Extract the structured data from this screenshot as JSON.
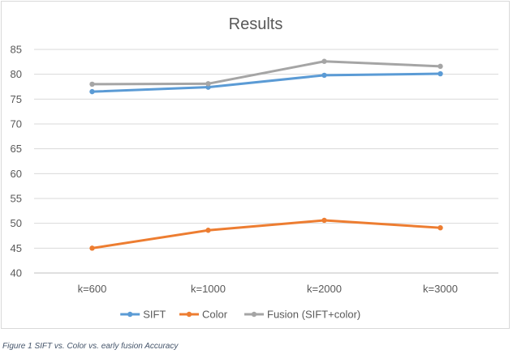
{
  "chart_data": {
    "type": "line",
    "title": "Results",
    "xlabel": "",
    "ylabel": "",
    "categories": [
      "k=600",
      "k=1000",
      "k=2000",
      "k=3000"
    ],
    "ylim": [
      40,
      85
    ],
    "yticks": [
      40,
      45,
      50,
      55,
      60,
      65,
      70,
      75,
      80,
      85
    ],
    "grid": true,
    "legend": "bottom",
    "series": [
      {
        "name": "SIFT",
        "color": "#5b9bd5",
        "values": [
          76.5,
          77.4,
          79.8,
          80.1
        ]
      },
      {
        "name": "Color",
        "color": "#ed7d31",
        "values": [
          45.0,
          48.6,
          50.6,
          49.1
        ]
      },
      {
        "name": "Fusion (SIFT+color)",
        "color": "#a5a5a5",
        "values": [
          78.0,
          78.1,
          82.6,
          81.6
        ]
      }
    ]
  },
  "caption": "Figure 1 SIFT vs. Color vs. early fusion Accuracy"
}
